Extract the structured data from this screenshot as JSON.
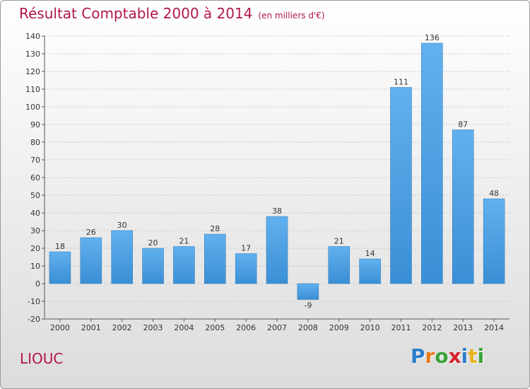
{
  "chart_data": {
    "type": "bar",
    "title": "Résultat Comptable 2000 à 2014",
    "subtitle": "(en milliers d'€)",
    "categories": [
      "2000",
      "2001",
      "2002",
      "2003",
      "2004",
      "2005",
      "2006",
      "2007",
      "2008",
      "2009",
      "2010",
      "2011",
      "2012",
      "2013",
      "2014"
    ],
    "values": [
      18,
      26,
      30,
      20,
      21,
      28,
      17,
      38,
      -9,
      21,
      14,
      111,
      136,
      87,
      48
    ],
    "ylim": [
      -20,
      140
    ],
    "yticks": [
      -20,
      -10,
      0,
      10,
      20,
      30,
      40,
      50,
      60,
      70,
      80,
      90,
      100,
      110,
      120,
      130,
      140
    ],
    "grid": true,
    "bar_color": "#3a8fd4",
    "bar_color_light": "#62b0ee"
  },
  "footer": {
    "commune": "LIOUC",
    "logo_letters": [
      "P",
      "r",
      "o",
      "x",
      "i",
      "t",
      "i"
    ],
    "logo_colors": [
      "#2b7ec9",
      "#e8791a",
      "#3aa33a",
      "#d4232f",
      "#2b7ec9",
      "#e8b21a",
      "#3aa33a"
    ]
  }
}
